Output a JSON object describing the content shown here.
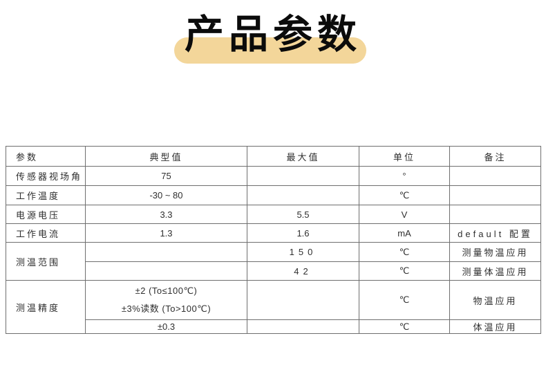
{
  "title": {
    "text": "产品参数",
    "highlight_color": "#f3d69a",
    "text_color": "#0b0b0b"
  },
  "table": {
    "colors": {
      "border": "#6e6e6e",
      "text": "#2e2e2e"
    },
    "headers": {
      "param": "参数",
      "typical": "典型值",
      "max": "最大值",
      "unit": "单位",
      "note": "备注"
    },
    "rows": [
      {
        "param": "传感器视场角",
        "typical": "75",
        "max": "",
        "unit": "°",
        "note": ""
      },
      {
        "param": "工作温度",
        "typical": "-30 ~ 80",
        "max": "",
        "unit": "℃",
        "note": ""
      },
      {
        "param": "电源电压",
        "typical": "3.3",
        "max": "5.5",
        "unit": "V",
        "note": ""
      },
      {
        "param": "工作电流",
        "typical": "1.3",
        "max": "1.6",
        "unit": "mA",
        "note": "default 配置"
      },
      {
        "param": "测温范围",
        "typical": "",
        "max": "150",
        "unit": "℃",
        "note": "测量物温应用"
      },
      {
        "param": "",
        "typical": "",
        "max": "42",
        "unit": "℃",
        "note": "测量体温应用"
      },
      {
        "param": "测温精度",
        "typical_line1": "±2 (To≤100℃)",
        "typical_line2": "±3%读数 (To>100℃)",
        "max": "",
        "unit": "℃",
        "note": "物温应用"
      },
      {
        "param": "",
        "typical": "±0.3",
        "max": "",
        "unit": "℃",
        "note": "体温应用"
      }
    ]
  }
}
